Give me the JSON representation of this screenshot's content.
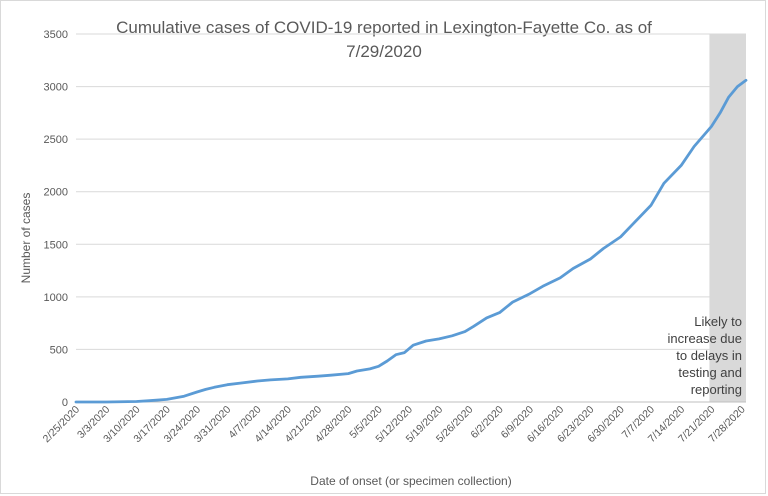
{
  "chart_data": {
    "type": "line",
    "title_lines": [
      "Cumulative cases of COVID-19 reported in Lexington-Fayette Co.  as of",
      "7/29/2020"
    ],
    "xlabel": "Date of onset (or specimen collection)",
    "ylabel": "Number of cases",
    "ylim": [
      0,
      3500
    ],
    "yticks": [
      0,
      500,
      1000,
      1500,
      2000,
      2500,
      3000,
      3500
    ],
    "x_tick_labels": [
      "2/25/2020",
      "3/3/2020",
      "3/10/2020",
      "3/17/2020",
      "3/24/2020",
      "3/31/2020",
      "4/7/2020",
      "4/14/2020",
      "4/21/2020",
      "4/28/2020",
      "5/5/2020",
      "5/12/2020",
      "5/19/2020",
      "5/26/2020",
      "6/2/2020",
      "6/9/2020",
      "6/16/2020",
      "6/23/2020",
      "6/30/2020",
      "7/7/2020",
      "7/14/2020",
      "7/21/2020",
      "7/28/2020"
    ],
    "x_start": "2/25/2020",
    "x_end": "7/29/2020",
    "series": [
      {
        "color": "#5b9bd5",
        "points": [
          [
            "2/25/2020",
            0
          ],
          [
            "3/3/2020",
            0
          ],
          [
            "3/10/2020",
            5
          ],
          [
            "3/13/2020",
            12
          ],
          [
            "3/17/2020",
            25
          ],
          [
            "3/21/2020",
            55
          ],
          [
            "3/24/2020",
            95
          ],
          [
            "3/26/2020",
            120
          ],
          [
            "3/28/2020",
            140
          ],
          [
            "3/31/2020",
            165
          ],
          [
            "4/3/2020",
            180
          ],
          [
            "4/7/2020",
            200
          ],
          [
            "4/10/2020",
            210
          ],
          [
            "4/14/2020",
            220
          ],
          [
            "4/17/2020",
            235
          ],
          [
            "4/21/2020",
            245
          ],
          [
            "4/24/2020",
            255
          ],
          [
            "4/28/2020",
            270
          ],
          [
            "4/30/2020",
            295
          ],
          [
            "5/3/2020",
            315
          ],
          [
            "5/5/2020",
            340
          ],
          [
            "5/7/2020",
            390
          ],
          [
            "5/9/2020",
            450
          ],
          [
            "5/11/2020",
            470
          ],
          [
            "5/13/2020",
            540
          ],
          [
            "5/16/2020",
            580
          ],
          [
            "5/19/2020",
            600
          ],
          [
            "5/22/2020",
            630
          ],
          [
            "5/25/2020",
            670
          ],
          [
            "5/27/2020",
            720
          ],
          [
            "5/30/2020",
            800
          ],
          [
            "6/2/2020",
            850
          ],
          [
            "6/5/2020",
            950
          ],
          [
            "6/9/2020",
            1030
          ],
          [
            "6/12/2020",
            1100
          ],
          [
            "6/16/2020",
            1180
          ],
          [
            "6/19/2020",
            1270
          ],
          [
            "6/23/2020",
            1360
          ],
          [
            "6/26/2020",
            1460
          ],
          [
            "6/30/2020",
            1570
          ],
          [
            "7/3/2020",
            1700
          ],
          [
            "7/7/2020",
            1870
          ],
          [
            "7/10/2020",
            2080
          ],
          [
            "7/14/2020",
            2250
          ],
          [
            "7/17/2020",
            2430
          ],
          [
            "7/21/2020",
            2620
          ],
          [
            "7/23/2020",
            2750
          ],
          [
            "7/25/2020",
            2900
          ],
          [
            "7/27/2020",
            3000
          ],
          [
            "7/29/2020",
            3060
          ]
        ]
      }
    ],
    "shaded_region": {
      "from": "7/21/2020",
      "to": "7/29/2020",
      "color": "#d9d9d9"
    },
    "annotation_lines": [
      "Likely to",
      "increase due",
      "to delays in",
      "testing and",
      "reporting"
    ],
    "grid": {
      "horizontal": true,
      "vertical": false,
      "color": "#d9d9d9"
    }
  }
}
